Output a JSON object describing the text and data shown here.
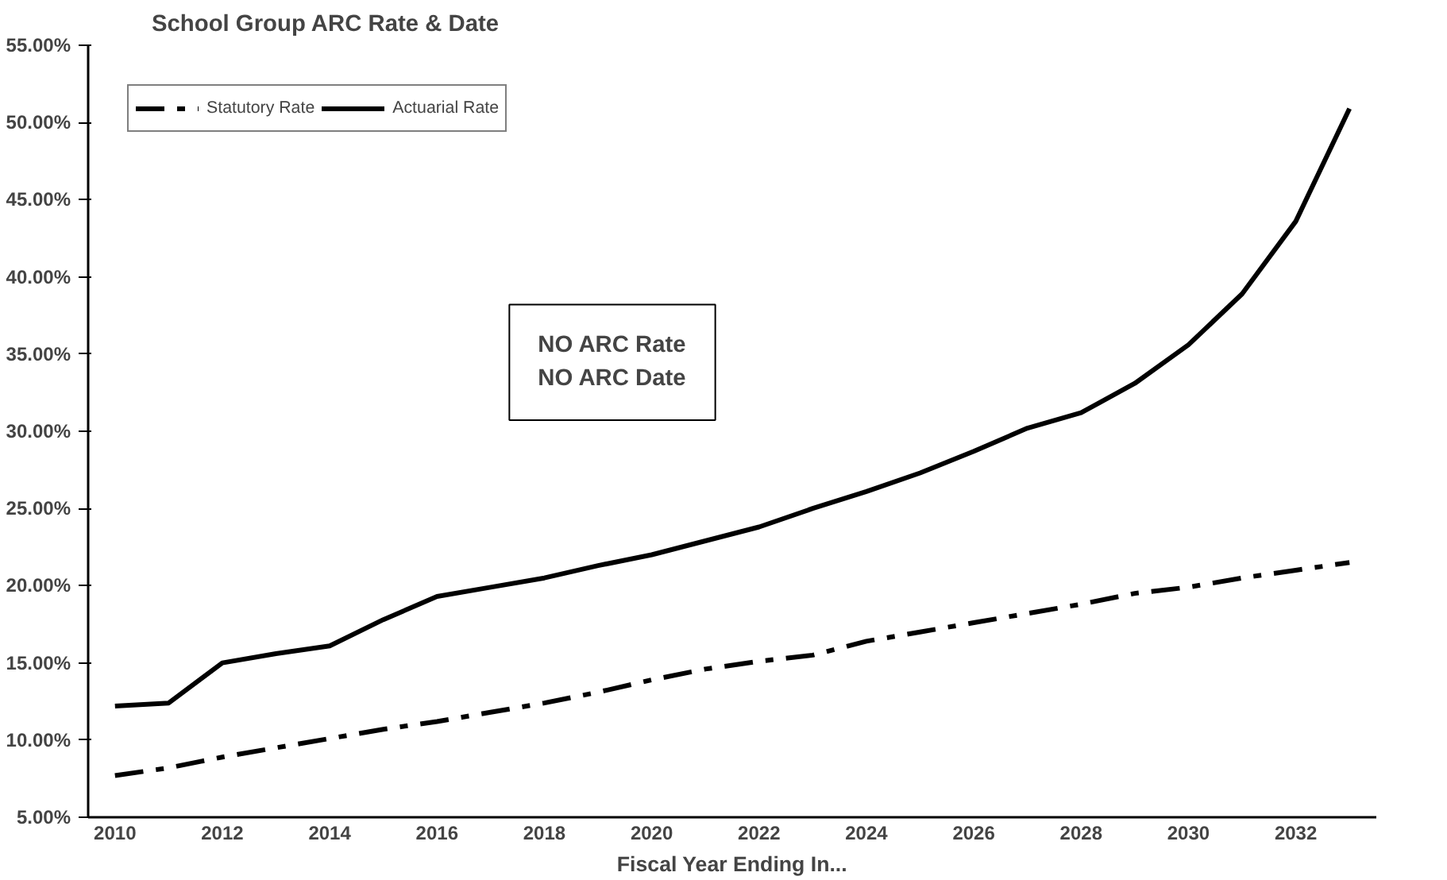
{
  "chart_data": {
    "type": "line",
    "title": "School Group ARC Rate & Date",
    "xlabel": "Fiscal Year Ending In...",
    "categories": [
      "2010",
      null,
      "2012",
      null,
      "2014",
      null,
      "2016",
      null,
      "2018",
      null,
      "2020",
      null,
      "2022",
      null,
      "2024",
      null,
      "2026",
      null,
      "2028",
      null,
      "2030",
      null,
      "2032",
      null
    ],
    "series": [
      {
        "name": "Statutory Rate",
        "color": "#000000",
        "line_style": "dashed",
        "values": [
          7.7,
          8.2,
          8.9,
          9.5,
          10.1,
          10.7,
          11.2,
          11.8,
          12.4,
          13.1,
          13.9,
          14.6,
          15.1,
          15.5,
          16.4,
          17.0,
          17.6,
          18.2,
          18.8,
          19.5,
          19.9,
          20.5,
          21.0,
          21.5
        ]
      },
      {
        "name": "Actuarial Rate",
        "color": "#000000",
        "line_style": "solid",
        "values": [
          12.2,
          12.4,
          15.0,
          15.6,
          16.1,
          17.8,
          19.3,
          19.9,
          20.5,
          21.3,
          22.0,
          22.9,
          23.8,
          25.0,
          26.1,
          27.3,
          28.7,
          30.2,
          31.2,
          33.1,
          35.6,
          38.9,
          43.6,
          50.9
        ]
      }
    ],
    "ylim": [
      5,
      55
    ],
    "yticks": [
      {
        "value": 5,
        "label": "5.00%"
      },
      {
        "value": 10,
        "label": "10.00%"
      },
      {
        "value": 15,
        "label": "15.00%"
      },
      {
        "value": 20,
        "label": "20.00%"
      },
      {
        "value": 25,
        "label": "25.00%"
      },
      {
        "value": 30,
        "label": "30.00%"
      },
      {
        "value": 35,
        "label": "35.00%"
      },
      {
        "value": 40,
        "label": "40.00%"
      },
      {
        "value": 45,
        "label": "45.00%"
      },
      {
        "value": 50,
        "label": "50.00%"
      },
      {
        "value": 55,
        "label": "55.00%"
      }
    ],
    "annotations": [
      "NO ARC Rate\nNO ARC Date"
    ],
    "legend": "top left",
    "grid": false
  }
}
